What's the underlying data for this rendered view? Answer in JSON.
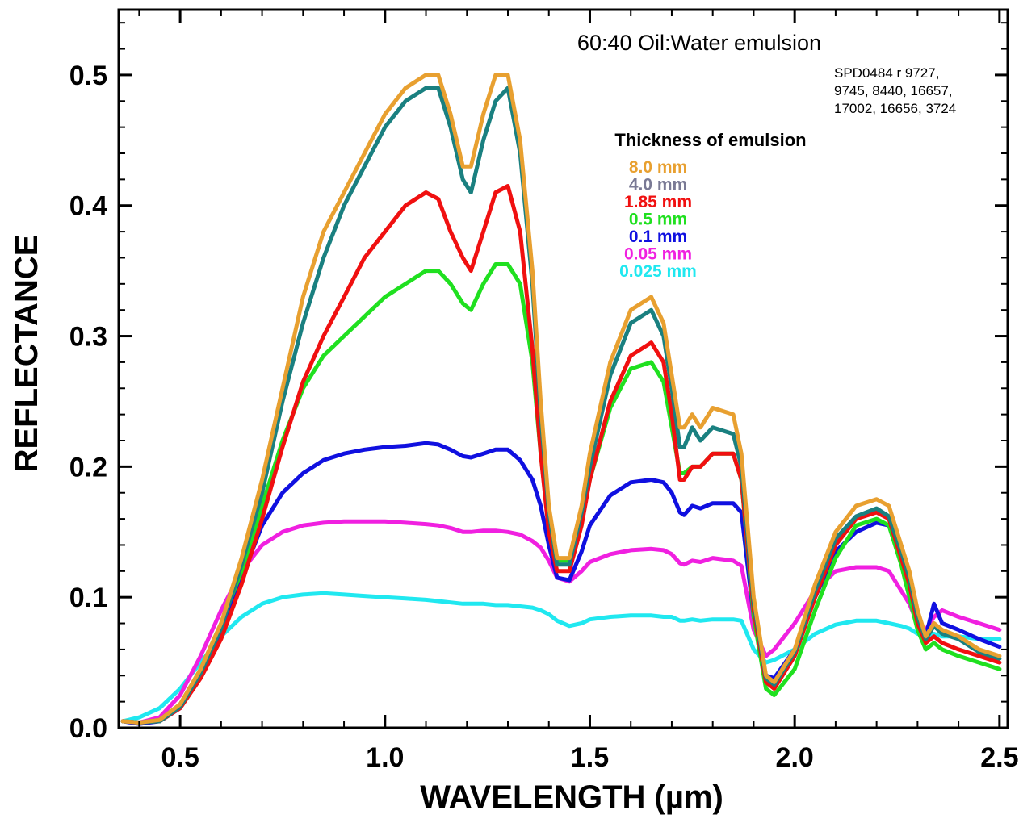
{
  "chart_data": {
    "type": "line",
    "title": "60:40 Oil:Water emulsion",
    "note_lines": [
      "SPD0484 r 9727,",
      "9745, 8440, 16657,",
      "17002, 16656, 3724"
    ],
    "xlabel": "WAVELENGTH (µm)",
    "ylabel": "REFLECTANCE",
    "xlim": [
      0.35,
      2.52
    ],
    "ylim": [
      0.0,
      0.55
    ],
    "xticks": [
      0.5,
      1.0,
      1.5,
      2.0,
      2.5
    ],
    "xtick_labels": [
      "0.5",
      "1.0",
      "1.5",
      "2.0",
      "2.5"
    ],
    "yticks": [
      0.0,
      0.1,
      0.2,
      0.3,
      0.4,
      0.5
    ],
    "ytick_labels": [
      "0.0",
      "0.1",
      "0.2",
      "0.3",
      "0.4",
      "0.5"
    ],
    "grid": false,
    "legend_title": "Thickness of emulsion",
    "legend_position": "top-right",
    "series": [
      {
        "name": "8.0 mm",
        "color": "#e8a030",
        "x": [
          0.36,
          0.4,
          0.45,
          0.5,
          0.55,
          0.6,
          0.65,
          0.7,
          0.75,
          0.8,
          0.85,
          0.9,
          0.95,
          1.0,
          1.05,
          1.1,
          1.13,
          1.16,
          1.19,
          1.21,
          1.24,
          1.27,
          1.3,
          1.33,
          1.36,
          1.38,
          1.4,
          1.42,
          1.45,
          1.48,
          1.5,
          1.55,
          1.6,
          1.65,
          1.68,
          1.7,
          1.72,
          1.73,
          1.75,
          1.77,
          1.8,
          1.85,
          1.87,
          1.9,
          1.93,
          1.95,
          2.0,
          2.05,
          2.1,
          2.15,
          2.2,
          2.23,
          2.26,
          2.28,
          2.3,
          2.32,
          2.34,
          2.36,
          2.4,
          2.45,
          2.5
        ],
        "y": [
          0.005,
          0.004,
          0.006,
          0.018,
          0.045,
          0.08,
          0.13,
          0.19,
          0.26,
          0.33,
          0.38,
          0.41,
          0.44,
          0.47,
          0.49,
          0.5,
          0.5,
          0.47,
          0.43,
          0.43,
          0.47,
          0.5,
          0.5,
          0.45,
          0.35,
          0.25,
          0.17,
          0.13,
          0.13,
          0.17,
          0.21,
          0.28,
          0.32,
          0.33,
          0.31,
          0.27,
          0.23,
          0.23,
          0.24,
          0.23,
          0.245,
          0.24,
          0.21,
          0.1,
          0.04,
          0.035,
          0.06,
          0.11,
          0.15,
          0.17,
          0.175,
          0.17,
          0.14,
          0.12,
          0.09,
          0.07,
          0.08,
          0.075,
          0.07,
          0.06,
          0.055
        ]
      },
      {
        "name": "4.0 mm",
        "color": "#1a8080",
        "x": [
          0.36,
          0.4,
          0.45,
          0.5,
          0.55,
          0.6,
          0.65,
          0.7,
          0.75,
          0.8,
          0.85,
          0.9,
          0.95,
          1.0,
          1.05,
          1.1,
          1.13,
          1.16,
          1.19,
          1.21,
          1.24,
          1.27,
          1.3,
          1.33,
          1.36,
          1.38,
          1.4,
          1.42,
          1.45,
          1.48,
          1.5,
          1.55,
          1.6,
          1.65,
          1.68,
          1.7,
          1.72,
          1.73,
          1.75,
          1.77,
          1.8,
          1.85,
          1.87,
          1.9,
          1.93,
          1.95,
          2.0,
          2.05,
          2.1,
          2.15,
          2.2,
          2.23,
          2.26,
          2.28,
          2.3,
          2.32,
          2.34,
          2.36,
          2.4,
          2.45,
          2.5
        ],
        "y": [
          0.005,
          0.004,
          0.005,
          0.016,
          0.042,
          0.076,
          0.125,
          0.18,
          0.25,
          0.31,
          0.36,
          0.4,
          0.43,
          0.46,
          0.48,
          0.49,
          0.49,
          0.46,
          0.42,
          0.41,
          0.45,
          0.48,
          0.49,
          0.44,
          0.34,
          0.24,
          0.165,
          0.125,
          0.125,
          0.165,
          0.2,
          0.27,
          0.31,
          0.32,
          0.3,
          0.26,
          0.215,
          0.215,
          0.23,
          0.22,
          0.23,
          0.225,
          0.2,
          0.095,
          0.038,
          0.033,
          0.058,
          0.105,
          0.145,
          0.162,
          0.168,
          0.162,
          0.135,
          0.115,
          0.085,
          0.068,
          0.078,
          0.072,
          0.068,
          0.058,
          0.053
        ]
      },
      {
        "name": "1.85 mm",
        "color": "#f01010",
        "x": [
          0.36,
          0.4,
          0.45,
          0.5,
          0.55,
          0.6,
          0.65,
          0.7,
          0.75,
          0.8,
          0.85,
          0.9,
          0.95,
          1.0,
          1.05,
          1.1,
          1.13,
          1.16,
          1.19,
          1.21,
          1.24,
          1.27,
          1.3,
          1.33,
          1.36,
          1.38,
          1.4,
          1.42,
          1.45,
          1.48,
          1.5,
          1.55,
          1.6,
          1.65,
          1.68,
          1.7,
          1.72,
          1.73,
          1.75,
          1.77,
          1.8,
          1.85,
          1.87,
          1.9,
          1.93,
          1.95,
          2.0,
          2.05,
          2.1,
          2.15,
          2.2,
          2.23,
          2.26,
          2.28,
          2.3,
          2.32,
          2.34,
          2.36,
          2.4,
          2.45,
          2.5
        ],
        "y": [
          0.005,
          0.004,
          0.005,
          0.015,
          0.038,
          0.068,
          0.11,
          0.16,
          0.215,
          0.265,
          0.3,
          0.33,
          0.36,
          0.38,
          0.4,
          0.41,
          0.405,
          0.38,
          0.36,
          0.35,
          0.38,
          0.41,
          0.415,
          0.38,
          0.29,
          0.21,
          0.15,
          0.12,
          0.12,
          0.155,
          0.19,
          0.25,
          0.285,
          0.295,
          0.28,
          0.24,
          0.19,
          0.19,
          0.2,
          0.2,
          0.21,
          0.21,
          0.19,
          0.09,
          0.035,
          0.03,
          0.055,
          0.1,
          0.14,
          0.16,
          0.165,
          0.16,
          0.13,
          0.11,
          0.08,
          0.065,
          0.07,
          0.065,
          0.06,
          0.055,
          0.05
        ]
      },
      {
        "name": "0.5 mm",
        "color": "#20e020",
        "x": [
          0.36,
          0.4,
          0.45,
          0.5,
          0.55,
          0.6,
          0.65,
          0.7,
          0.75,
          0.8,
          0.85,
          0.9,
          0.95,
          1.0,
          1.05,
          1.1,
          1.13,
          1.16,
          1.19,
          1.21,
          1.24,
          1.27,
          1.3,
          1.33,
          1.36,
          1.38,
          1.4,
          1.42,
          1.45,
          1.48,
          1.5,
          1.55,
          1.6,
          1.65,
          1.68,
          1.7,
          1.72,
          1.73,
          1.75,
          1.77,
          1.8,
          1.85,
          1.87,
          1.9,
          1.93,
          1.95,
          2.0,
          2.05,
          2.1,
          2.15,
          2.2,
          2.23,
          2.26,
          2.28,
          2.3,
          2.32,
          2.34,
          2.36,
          2.4,
          2.45,
          2.5
        ],
        "y": [
          0.005,
          0.004,
          0.006,
          0.018,
          0.045,
          0.08,
          0.12,
          0.17,
          0.22,
          0.26,
          0.285,
          0.3,
          0.315,
          0.33,
          0.34,
          0.35,
          0.35,
          0.34,
          0.325,
          0.32,
          0.34,
          0.355,
          0.355,
          0.34,
          0.28,
          0.21,
          0.155,
          0.128,
          0.128,
          0.16,
          0.19,
          0.245,
          0.275,
          0.28,
          0.265,
          0.23,
          0.195,
          0.195,
          0.2,
          0.2,
          0.21,
          0.21,
          0.19,
          0.085,
          0.03,
          0.025,
          0.045,
          0.09,
          0.13,
          0.155,
          0.16,
          0.155,
          0.125,
          0.1,
          0.075,
          0.06,
          0.065,
          0.06,
          0.055,
          0.05,
          0.045
        ]
      },
      {
        "name": "0.1 mm",
        "color": "#1010e0",
        "x": [
          0.36,
          0.4,
          0.45,
          0.5,
          0.55,
          0.6,
          0.65,
          0.7,
          0.75,
          0.8,
          0.85,
          0.9,
          0.95,
          1.0,
          1.05,
          1.1,
          1.13,
          1.16,
          1.19,
          1.21,
          1.24,
          1.27,
          1.3,
          1.33,
          1.36,
          1.38,
          1.4,
          1.42,
          1.45,
          1.48,
          1.5,
          1.55,
          1.6,
          1.65,
          1.68,
          1.7,
          1.72,
          1.73,
          1.75,
          1.77,
          1.8,
          1.85,
          1.87,
          1.9,
          1.93,
          1.95,
          2.0,
          2.05,
          2.1,
          2.15,
          2.2,
          2.23,
          2.26,
          2.28,
          2.3,
          2.32,
          2.34,
          2.36,
          2.4,
          2.45,
          2.5
        ],
        "y": [
          0.005,
          0.003,
          0.005,
          0.015,
          0.04,
          0.075,
          0.115,
          0.155,
          0.18,
          0.195,
          0.205,
          0.21,
          0.213,
          0.215,
          0.216,
          0.218,
          0.217,
          0.213,
          0.208,
          0.207,
          0.21,
          0.213,
          0.213,
          0.205,
          0.19,
          0.17,
          0.14,
          0.115,
          0.113,
          0.135,
          0.155,
          0.178,
          0.188,
          0.19,
          0.188,
          0.18,
          0.165,
          0.163,
          0.17,
          0.168,
          0.172,
          0.172,
          0.165,
          0.085,
          0.04,
          0.038,
          0.06,
          0.1,
          0.135,
          0.15,
          0.157,
          0.155,
          0.13,
          0.11,
          0.085,
          0.07,
          0.095,
          0.08,
          0.075,
          0.068,
          0.062
        ]
      },
      {
        "name": "0.05 mm",
        "color": "#f020e0",
        "x": [
          0.36,
          0.4,
          0.45,
          0.5,
          0.55,
          0.6,
          0.65,
          0.7,
          0.75,
          0.8,
          0.85,
          0.9,
          0.95,
          1.0,
          1.05,
          1.1,
          1.13,
          1.16,
          1.19,
          1.21,
          1.24,
          1.27,
          1.3,
          1.33,
          1.36,
          1.38,
          1.4,
          1.42,
          1.45,
          1.48,
          1.5,
          1.55,
          1.6,
          1.65,
          1.68,
          1.7,
          1.72,
          1.73,
          1.75,
          1.77,
          1.8,
          1.85,
          1.87,
          1.9,
          1.93,
          1.95,
          2.0,
          2.05,
          2.1,
          2.15,
          2.2,
          2.23,
          2.26,
          2.28,
          2.3,
          2.32,
          2.34,
          2.36,
          2.4,
          2.45,
          2.5
        ],
        "y": [
          0.005,
          0.004,
          0.008,
          0.025,
          0.055,
          0.09,
          0.12,
          0.14,
          0.15,
          0.155,
          0.157,
          0.158,
          0.158,
          0.158,
          0.157,
          0.156,
          0.155,
          0.153,
          0.15,
          0.15,
          0.151,
          0.151,
          0.15,
          0.148,
          0.143,
          0.138,
          0.128,
          0.115,
          0.112,
          0.12,
          0.127,
          0.133,
          0.136,
          0.137,
          0.136,
          0.133,
          0.126,
          0.125,
          0.128,
          0.127,
          0.13,
          0.128,
          0.124,
          0.075,
          0.055,
          0.06,
          0.08,
          0.105,
          0.12,
          0.123,
          0.123,
          0.12,
          0.105,
          0.095,
          0.08,
          0.075,
          0.085,
          0.09,
          0.085,
          0.08,
          0.075
        ]
      },
      {
        "name": "0.025 mm",
        "color": "#20e8f0",
        "x": [
          0.36,
          0.4,
          0.45,
          0.5,
          0.55,
          0.6,
          0.65,
          0.7,
          0.75,
          0.8,
          0.85,
          0.9,
          0.95,
          1.0,
          1.05,
          1.1,
          1.13,
          1.16,
          1.19,
          1.21,
          1.24,
          1.27,
          1.3,
          1.33,
          1.36,
          1.38,
          1.4,
          1.42,
          1.45,
          1.48,
          1.5,
          1.55,
          1.6,
          1.65,
          1.68,
          1.7,
          1.72,
          1.73,
          1.75,
          1.77,
          1.8,
          1.85,
          1.87,
          1.9,
          1.93,
          1.95,
          2.0,
          2.05,
          2.1,
          2.15,
          2.2,
          2.23,
          2.26,
          2.28,
          2.3,
          2.32,
          2.34,
          2.36,
          2.4,
          2.45,
          2.5
        ],
        "y": [
          0.005,
          0.008,
          0.015,
          0.03,
          0.05,
          0.07,
          0.085,
          0.095,
          0.1,
          0.102,
          0.103,
          0.102,
          0.101,
          0.1,
          0.099,
          0.098,
          0.097,
          0.096,
          0.095,
          0.095,
          0.095,
          0.094,
          0.094,
          0.093,
          0.092,
          0.09,
          0.087,
          0.082,
          0.078,
          0.08,
          0.083,
          0.085,
          0.086,
          0.086,
          0.085,
          0.085,
          0.082,
          0.082,
          0.083,
          0.082,
          0.083,
          0.083,
          0.082,
          0.06,
          0.05,
          0.052,
          0.06,
          0.072,
          0.079,
          0.082,
          0.082,
          0.08,
          0.078,
          0.076,
          0.072,
          0.07,
          0.072,
          0.07,
          0.07,
          0.068,
          0.068
        ]
      }
    ]
  }
}
